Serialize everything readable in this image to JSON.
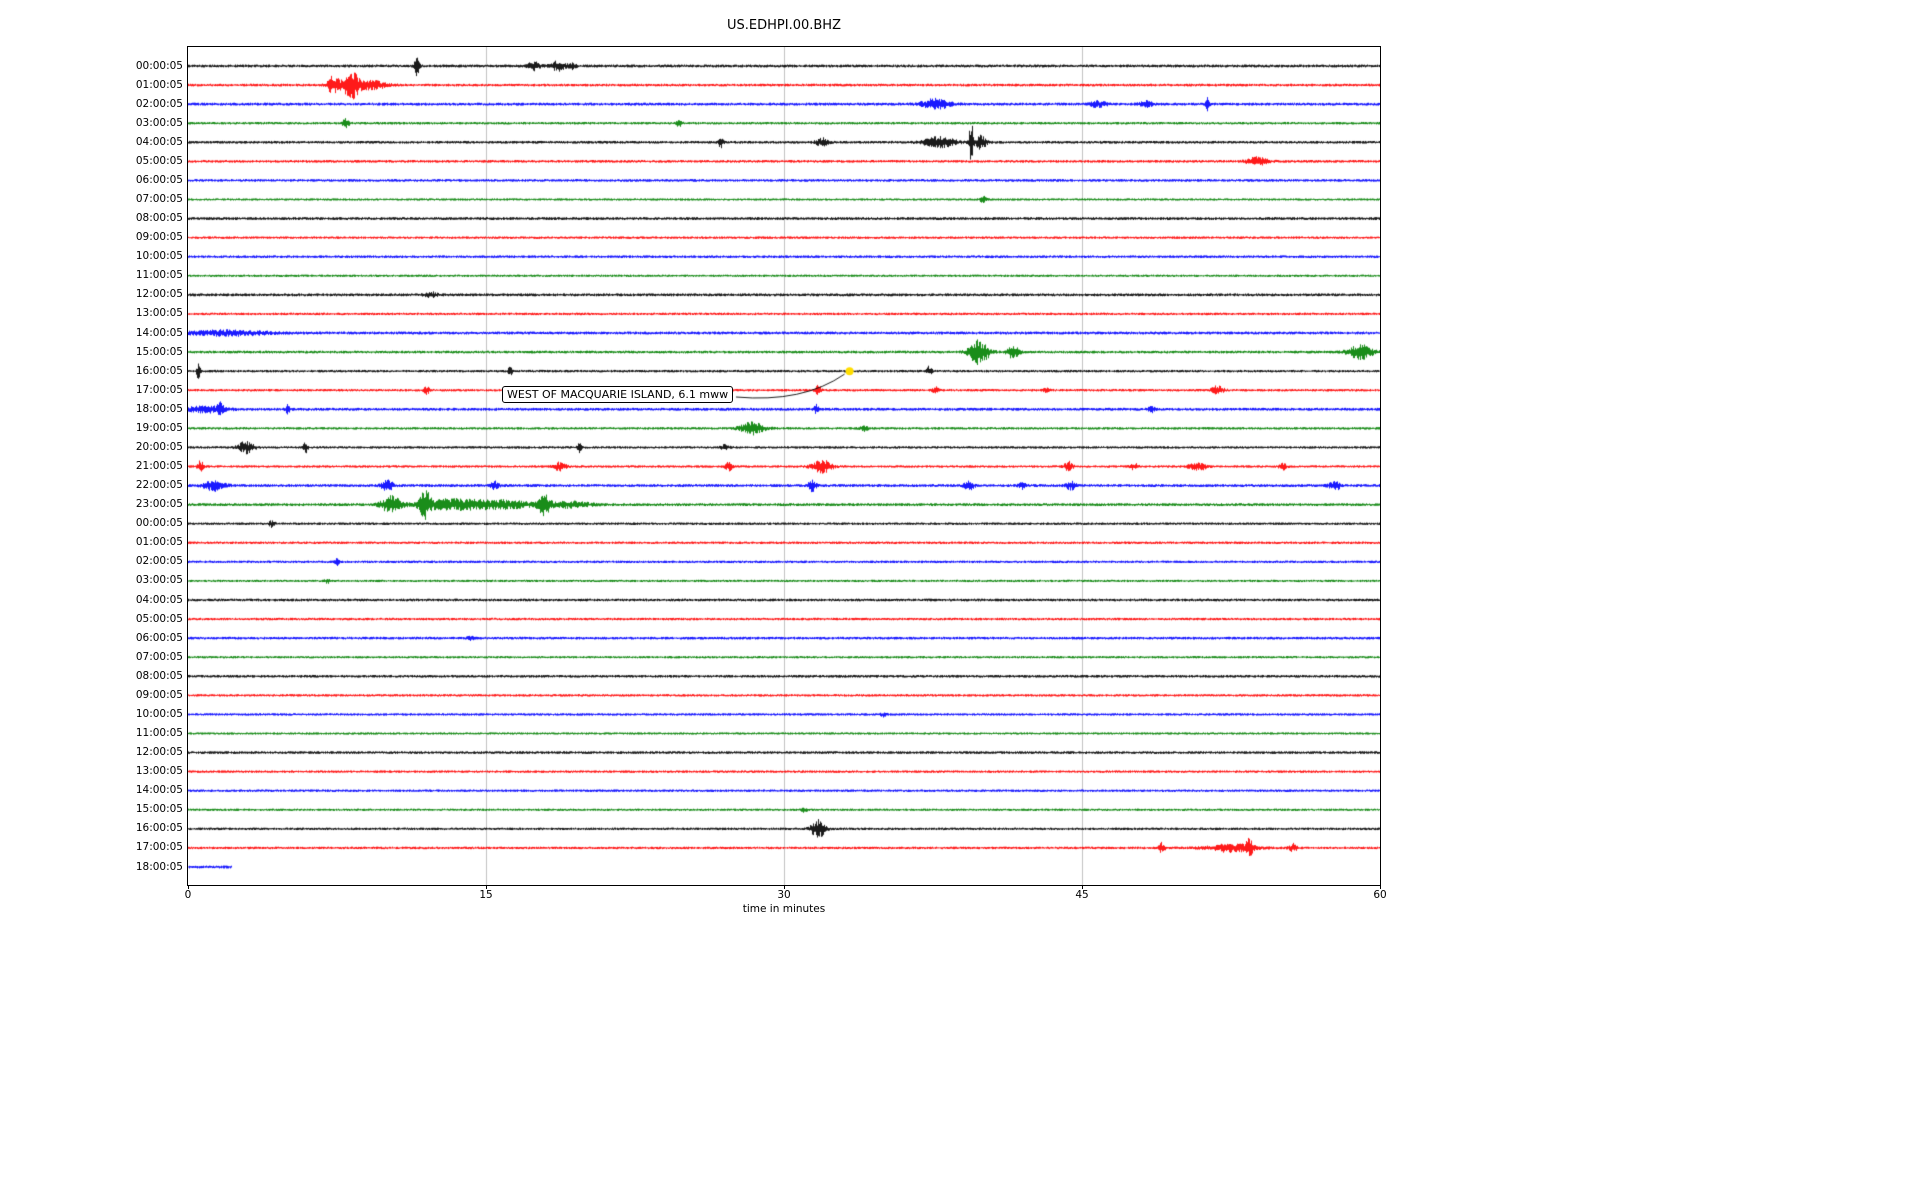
{
  "title": "US.EDHPI.00.BHZ",
  "xlabel": "time in minutes",
  "annotation": {
    "text": "WEST OF MACQUARIE ISLAND, 6.1 mww",
    "marker_row_label": "16:00:05",
    "marker_row_index": 16,
    "marker_minute": 33.3,
    "marker_color": "#ffdd00"
  },
  "chart_data": {
    "type": "line",
    "subtype": "seismogram-helicorder",
    "title": "US.EDHPI.00.BHZ",
    "xlabel": "time in minutes",
    "ylabel": "",
    "xlim": [
      0,
      60
    ],
    "x_ticks": [
      0,
      15,
      30,
      45,
      60
    ],
    "x_gridlines": [
      15,
      30,
      45
    ],
    "grid": "vertical-only",
    "legend": "none",
    "palette_cycle": [
      "#000000",
      "#ff0000",
      "#0000ff",
      "#008000"
    ],
    "rows": [
      {
        "label": "00:00:05",
        "color": "#000000",
        "noise": 1.5,
        "events": [
          {
            "x": 11.5,
            "a": 9,
            "w": 0.12
          },
          {
            "x": 17.4,
            "a": 4,
            "w": 0.3
          },
          {
            "x": 18.6,
            "a": 4.5,
            "w": 0.35
          },
          {
            "x": 19.3,
            "a": 3,
            "w": 0.2
          }
        ]
      },
      {
        "label": "01:00:05",
        "color": "#ff0000",
        "noise": 1.4,
        "events": [
          {
            "x": 7.3,
            "a": 9,
            "w": 0.3
          },
          {
            "x": 8.2,
            "a": 13,
            "w": 0.4
          },
          {
            "x": 9.2,
            "a": 4,
            "w": 0.8
          }
        ]
      },
      {
        "label": "02:00:05",
        "color": "#0000ff",
        "noise": 1.5,
        "events": [
          {
            "x": 37.6,
            "a": 5,
            "w": 0.7
          },
          {
            "x": 45.8,
            "a": 3,
            "w": 0.4
          },
          {
            "x": 48.2,
            "a": 3,
            "w": 0.3
          },
          {
            "x": 51.3,
            "a": 6,
            "w": 0.1
          }
        ]
      },
      {
        "label": "03:00:05",
        "color": "#008000",
        "noise": 1.3,
        "events": [
          {
            "x": 7.9,
            "a": 4,
            "w": 0.2
          },
          {
            "x": 24.7,
            "a": 3,
            "w": 0.15
          }
        ]
      },
      {
        "label": "04:00:05",
        "color": "#000000",
        "noise": 1.4,
        "events": [
          {
            "x": 26.8,
            "a": 5,
            "w": 0.12
          },
          {
            "x": 31.9,
            "a": 4,
            "w": 0.3
          },
          {
            "x": 37.8,
            "a": 5,
            "w": 0.8
          },
          {
            "x": 39.4,
            "a": 22,
            "w": 0.1
          },
          {
            "x": 39.9,
            "a": 7,
            "w": 0.25
          }
        ]
      },
      {
        "label": "05:00:05",
        "color": "#ff0000",
        "noise": 1.4,
        "events": [
          {
            "x": 53.8,
            "a": 4,
            "w": 0.5
          }
        ]
      },
      {
        "label": "06:00:05",
        "color": "#0000ff",
        "noise": 1.4,
        "events": []
      },
      {
        "label": "07:00:05",
        "color": "#008000",
        "noise": 1.2,
        "events": [
          {
            "x": 40,
            "a": 3,
            "w": 0.15
          }
        ]
      },
      {
        "label": "08:00:05",
        "color": "#000000",
        "noise": 1.5,
        "events": []
      },
      {
        "label": "09:00:05",
        "color": "#ff0000",
        "noise": 1.3,
        "events": []
      },
      {
        "label": "10:00:05",
        "color": "#0000ff",
        "noise": 1.4,
        "events": []
      },
      {
        "label": "11:00:05",
        "color": "#008000",
        "noise": 1.2,
        "events": []
      },
      {
        "label": "12:00:05",
        "color": "#000000",
        "noise": 1.5,
        "events": [
          {
            "x": 12.2,
            "a": 2.5,
            "w": 0.3
          }
        ]
      },
      {
        "label": "13:00:05",
        "color": "#ff0000",
        "noise": 1.3,
        "events": []
      },
      {
        "label": "14:00:05",
        "color": "#0000ff",
        "noise": 1.5,
        "events": [
          {
            "x": 2,
            "a": 2.5,
            "w": 2
          }
        ]
      },
      {
        "label": "15:00:05",
        "color": "#008000",
        "noise": 1.4,
        "events": [
          {
            "x": 39.8,
            "a": 12,
            "w": 0.5
          },
          {
            "x": 41.5,
            "a": 6,
            "w": 0.3
          },
          {
            "x": 59,
            "a": 7,
            "w": 0.6
          }
        ]
      },
      {
        "label": "16:00:05",
        "color": "#000000",
        "noise": 1.3,
        "events": [
          {
            "x": 0.5,
            "a": 7,
            "w": 0.1
          },
          {
            "x": 16.2,
            "a": 4,
            "w": 0.12
          },
          {
            "x": 37.3,
            "a": 5,
            "w": 0.12
          }
        ]
      },
      {
        "label": "17:00:05",
        "color": "#ff0000",
        "noise": 1.3,
        "events": [
          {
            "x": 12,
            "a": 4,
            "w": 0.15
          },
          {
            "x": 31.7,
            "a": 4.5,
            "w": 0.15
          },
          {
            "x": 37.6,
            "a": 3,
            "w": 0.15
          },
          {
            "x": 43.2,
            "a": 3,
            "w": 0.15
          },
          {
            "x": 51.8,
            "a": 4,
            "w": 0.3
          }
        ]
      },
      {
        "label": "18:00:05",
        "color": "#0000ff",
        "noise": 1.5,
        "events": [
          {
            "x": 0.9,
            "a": 3,
            "w": 1
          },
          {
            "x": 1.6,
            "a": 5,
            "w": 0.15
          },
          {
            "x": 5,
            "a": 4,
            "w": 0.12
          },
          {
            "x": 31.6,
            "a": 4,
            "w": 0.12
          },
          {
            "x": 48.5,
            "a": 2.5,
            "w": 0.2
          }
        ]
      },
      {
        "label": "19:00:05",
        "color": "#008000",
        "noise": 1.3,
        "events": [
          {
            "x": 28.4,
            "a": 6,
            "w": 0.6
          },
          {
            "x": 34,
            "a": 2.5,
            "w": 0.2
          }
        ]
      },
      {
        "label": "20:00:05",
        "color": "#000000",
        "noise": 1.3,
        "events": [
          {
            "x": 2.9,
            "a": 6,
            "w": 0.4
          },
          {
            "x": 5.9,
            "a": 5,
            "w": 0.12
          },
          {
            "x": 19.7,
            "a": 5,
            "w": 0.12
          },
          {
            "x": 27,
            "a": 2.5,
            "w": 0.2
          }
        ]
      },
      {
        "label": "21:00:05",
        "color": "#ff0000",
        "noise": 1.3,
        "events": [
          {
            "x": 0.6,
            "a": 6,
            "w": 0.15
          },
          {
            "x": 18.7,
            "a": 4,
            "w": 0.3
          },
          {
            "x": 27.2,
            "a": 4,
            "w": 0.2
          },
          {
            "x": 31.9,
            "a": 6,
            "w": 0.5
          },
          {
            "x": 44.3,
            "a": 5.5,
            "w": 0.2
          },
          {
            "x": 47.6,
            "a": 3,
            "w": 0.2
          },
          {
            "x": 50.8,
            "a": 4.5,
            "w": 0.4
          },
          {
            "x": 55.1,
            "a": 3,
            "w": 0.2
          }
        ]
      },
      {
        "label": "22:00:05",
        "color": "#0000ff",
        "noise": 1.5,
        "events": [
          {
            "x": 1.3,
            "a": 5,
            "w": 0.5
          },
          {
            "x": 10,
            "a": 5.5,
            "w": 0.3
          },
          {
            "x": 15.4,
            "a": 4,
            "w": 0.2
          },
          {
            "x": 31.4,
            "a": 5.5,
            "w": 0.2
          },
          {
            "x": 39.3,
            "a": 4,
            "w": 0.25
          },
          {
            "x": 42,
            "a": 3,
            "w": 0.2
          },
          {
            "x": 44.4,
            "a": 4,
            "w": 0.25
          },
          {
            "x": 57.7,
            "a": 4.5,
            "w": 0.3
          }
        ]
      },
      {
        "label": "23:00:05",
        "color": "#008000",
        "noise": 1.5,
        "events": [
          {
            "x": 10.2,
            "a": 8,
            "w": 0.5
          },
          {
            "x": 11.9,
            "a": 14,
            "w": 0.25
          },
          {
            "x": 13.2,
            "a": 5,
            "w": 1.5
          },
          {
            "x": 15.8,
            "a": 4,
            "w": 1.5
          },
          {
            "x": 17.9,
            "a": 9,
            "w": 0.3
          },
          {
            "x": 19.2,
            "a": 3,
            "w": 1
          }
        ]
      },
      {
        "label": "00:00:05",
        "color": "#000000",
        "noise": 1.3,
        "events": [
          {
            "x": 4.2,
            "a": 3,
            "w": 0.15
          }
        ]
      },
      {
        "label": "01:00:05",
        "color": "#ff0000",
        "noise": 1.3,
        "events": []
      },
      {
        "label": "02:00:05",
        "color": "#0000ff",
        "noise": 1.3,
        "events": [
          {
            "x": 7.5,
            "a": 3,
            "w": 0.12
          }
        ]
      },
      {
        "label": "03:00:05",
        "color": "#008000",
        "noise": 1.2,
        "events": [
          {
            "x": 7,
            "a": 2.5,
            "w": 0.12
          }
        ]
      },
      {
        "label": "04:00:05",
        "color": "#000000",
        "noise": 1.4,
        "events": []
      },
      {
        "label": "05:00:05",
        "color": "#ff0000",
        "noise": 1.3,
        "events": []
      },
      {
        "label": "06:00:05",
        "color": "#0000ff",
        "noise": 1.4,
        "events": [
          {
            "x": 14.2,
            "a": 2,
            "w": 0.15
          }
        ]
      },
      {
        "label": "07:00:05",
        "color": "#008000",
        "noise": 1.2,
        "events": []
      },
      {
        "label": "08:00:05",
        "color": "#000000",
        "noise": 1.4,
        "events": []
      },
      {
        "label": "09:00:05",
        "color": "#ff0000",
        "noise": 1.3,
        "events": []
      },
      {
        "label": "10:00:05",
        "color": "#0000ff",
        "noise": 1.3,
        "events": [
          {
            "x": 35,
            "a": 2,
            "w": 0.15
          }
        ]
      },
      {
        "label": "11:00:05",
        "color": "#008000",
        "noise": 1.2,
        "events": []
      },
      {
        "label": "12:00:05",
        "color": "#000000",
        "noise": 1.4,
        "events": []
      },
      {
        "label": "13:00:05",
        "color": "#ff0000",
        "noise": 1.3,
        "events": []
      },
      {
        "label": "14:00:05",
        "color": "#0000ff",
        "noise": 1.3,
        "events": []
      },
      {
        "label": "15:00:05",
        "color": "#008000",
        "noise": 1.2,
        "events": [
          {
            "x": 31,
            "a": 2,
            "w": 0.15
          }
        ]
      },
      {
        "label": "16:00:05",
        "color": "#000000",
        "noise": 1.3,
        "events": [
          {
            "x": 31.7,
            "a": 9,
            "w": 0.35
          }
        ]
      },
      {
        "label": "17:00:05",
        "color": "#ff0000",
        "noise": 1.3,
        "events": [
          {
            "x": 49,
            "a": 5,
            "w": 0.15
          },
          {
            "x": 52.5,
            "a": 4,
            "w": 1.2
          },
          {
            "x": 53.4,
            "a": 8,
            "w": 0.15
          },
          {
            "x": 55.6,
            "a": 4,
            "w": 0.2
          }
        ]
      },
      {
        "label": "18:00:05",
        "color": "#0000ff",
        "noise": 1.5,
        "events": [],
        "len": 2.2
      }
    ]
  }
}
